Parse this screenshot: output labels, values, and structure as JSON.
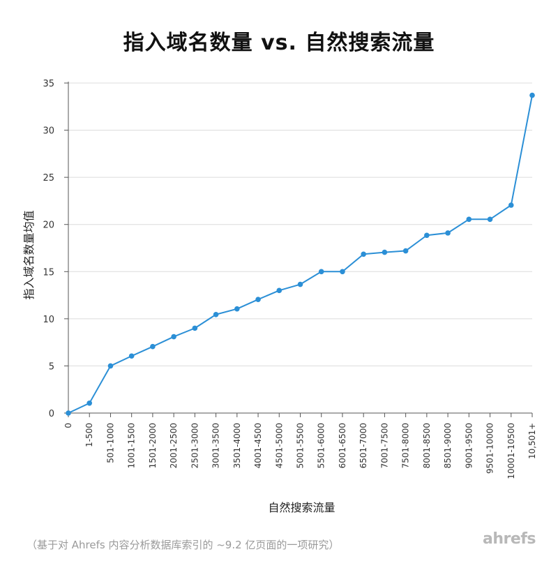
{
  "title": "指入域名数量 vs. 自然搜索流量",
  "footnote": "（基于对 Ahrefs 内容分析数据库索引的 ~9.2 亿页面的一项研究）",
  "logo": "ahrefs",
  "colors": {
    "line": "#2b8fd6",
    "grid": "#dcdcdc",
    "axis": "#555555"
  },
  "chart_data": {
    "type": "line",
    "title": "指入域名数量 vs. 自然搜索流量",
    "xlabel": "自然搜索流量",
    "ylabel": "指入域名数量均值",
    "ylim": [
      0,
      35
    ],
    "yticks": [
      0,
      5,
      10,
      15,
      20,
      25,
      30,
      35
    ],
    "grid": true,
    "categories": [
      "0",
      "1-500",
      "501-1000",
      "1001-1500",
      "1501-2000",
      "2001-2500",
      "2501-3000",
      "3001-3500",
      "3501-4000",
      "4001-4500",
      "4501-5000",
      "5001-5500",
      "5501-6000",
      "6001-6500",
      "6501-7000",
      "7001-7500",
      "7501-8000",
      "8001-8500",
      "8501-9000",
      "9001-9500",
      "9501-10000",
      "10001-10500",
      "10,501+"
    ],
    "series": [
      {
        "values": [
          0,
          1.05,
          5.0,
          6.05,
          7.05,
          8.1,
          9.0,
          10.45,
          11.05,
          12.05,
          13.0,
          13.65,
          15.0,
          15.0,
          16.85,
          17.05,
          17.2,
          18.85,
          19.1,
          20.55,
          20.55,
          22.05,
          33.7
        ]
      }
    ]
  }
}
